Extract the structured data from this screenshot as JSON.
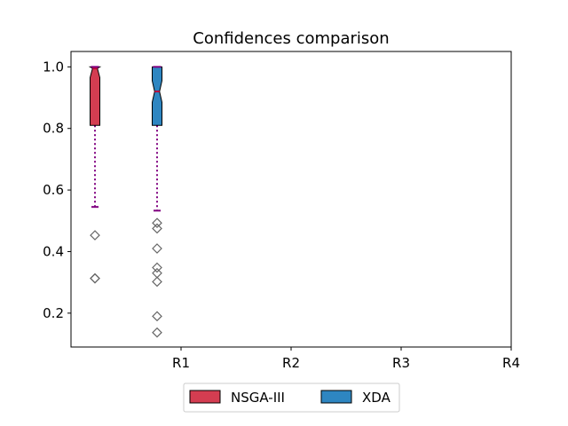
{
  "chart_data": {
    "type": "boxplot",
    "title": "Confidences comparison",
    "xlabel": "",
    "ylabel": "",
    "categories": [
      "R1",
      "R2",
      "R3",
      "R4"
    ],
    "ylim": [
      0.09,
      1.05
    ],
    "yticks": [
      0.2,
      0.4,
      0.6,
      0.8,
      1.0
    ],
    "ytick_labels": [
      "0.2",
      "0.4",
      "0.6",
      "0.8",
      "1.0"
    ],
    "legend_position": "bottom-center",
    "whisker_color": "#800080",
    "series": [
      {
        "name": "NSGA-III",
        "color": "#d43d51",
        "boxes": [
          {
            "category": "R1",
            "q1": 0.81,
            "median": 0.995,
            "q3": 1.0,
            "notch_low": 0.965,
            "notch_high": 1.0,
            "whisker_low": 0.545,
            "whisker_high": 1.0,
            "outliers": [
              0.453,
              0.313,
              0.313
            ]
          }
        ]
      },
      {
        "name": "XDA",
        "color": "#2e86c1",
        "boxes": [
          {
            "category": "R1",
            "q1": 0.81,
            "median": 0.92,
            "q3": 1.0,
            "notch_low": 0.885,
            "notch_high": 0.955,
            "whisker_low": 0.533,
            "whisker_high": 1.0,
            "outliers": [
              0.493,
              0.475,
              0.41,
              0.348,
              0.33,
              0.302,
              0.19,
              0.137
            ]
          }
        ]
      }
    ]
  }
}
